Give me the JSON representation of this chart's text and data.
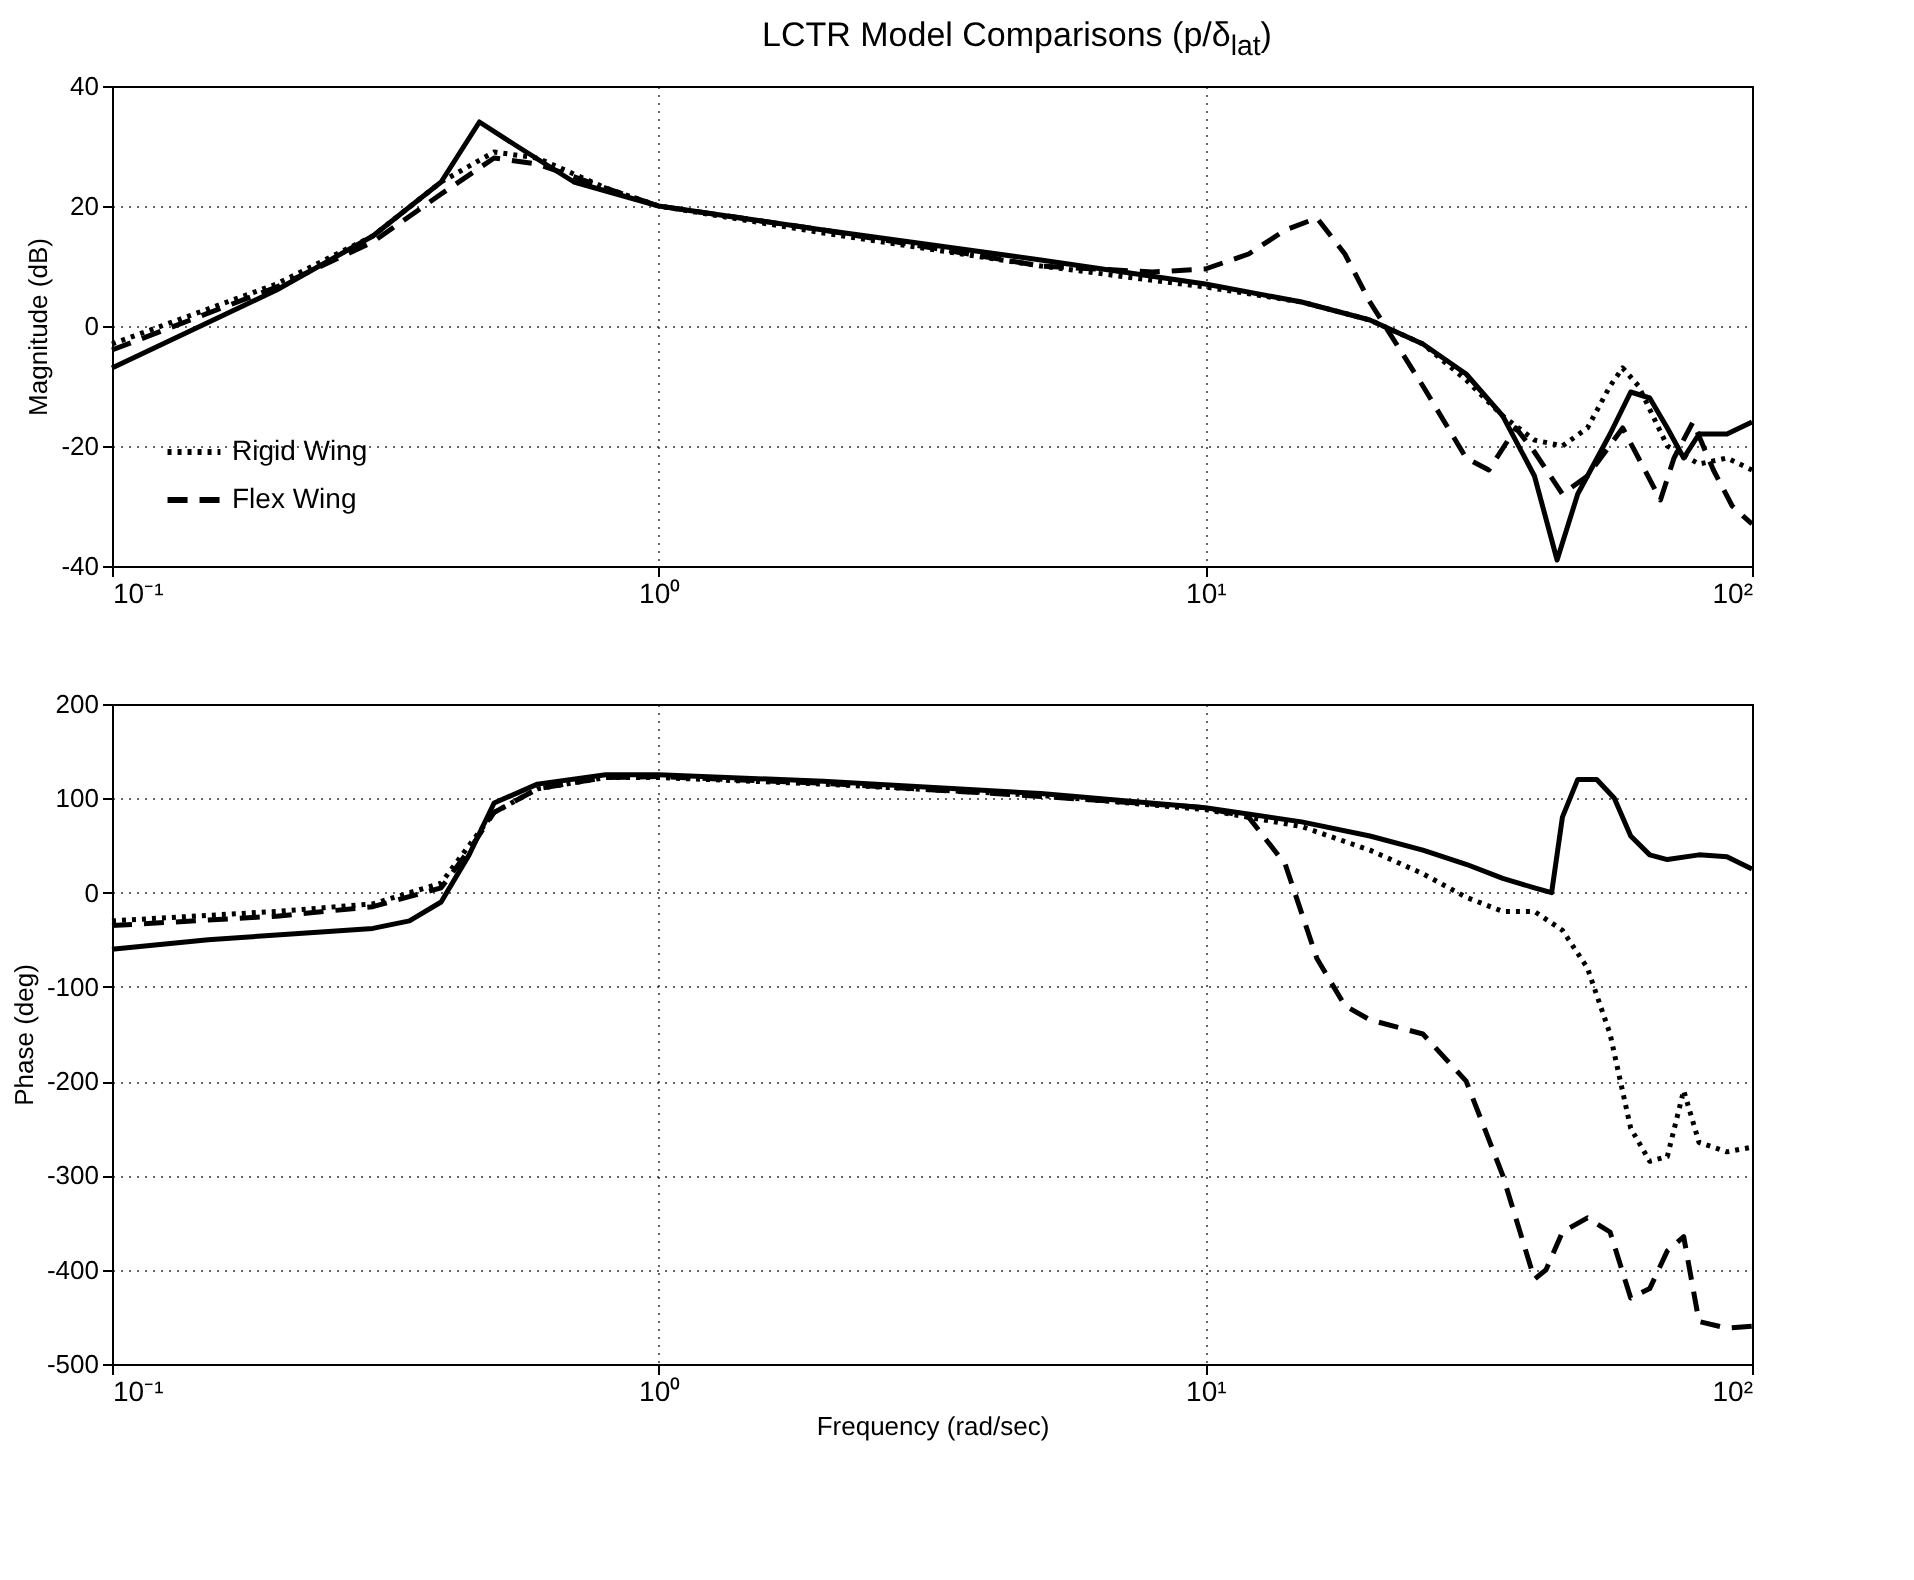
{
  "chart_data": [
    {
      "type": "line",
      "title": "LCTR Model Comparisons (p/δ$_{lat}$)",
      "ylabel": "Magnitude (dB)",
      "log": "x",
      "grid": true,
      "legend": "bottom left",
      "marker": "none",
      "xlim": [
        0.1,
        100
      ],
      "xticks": [
        {
          "value": 0.1,
          "label": "10⁻¹"
        },
        {
          "value": 1,
          "label": "10⁰"
        },
        {
          "value": 10,
          "label": "10¹"
        },
        {
          "value": 100,
          "label": "10²"
        }
      ],
      "ylim": [
        -40,
        40
      ],
      "yticks": [
        -40,
        -20,
        0,
        20,
        40
      ],
      "series": [
        {
          "name": "Rigid Wing",
          "color": "#000000",
          "line_style": "dotted",
          "x": [
            0.1,
            0.2,
            0.3,
            0.4,
            0.5,
            0.6,
            0.8,
            1,
            2,
            5,
            10,
            15,
            20,
            25,
            30,
            35,
            40,
            45,
            50,
            55,
            58,
            62,
            70,
            80,
            90,
            100
          ],
          "values": [
            -3,
            7,
            15,
            24,
            29,
            28,
            23,
            20,
            15.5,
            10,
            6.5,
            4,
            1,
            -3,
            -9,
            -15,
            -19,
            -20,
            -17,
            -10,
            -7,
            -10,
            -20,
            -23,
            -22,
            -24
          ]
        },
        {
          "name": "Flex Wing",
          "color": "#000000",
          "line_style": "dashed",
          "x": [
            0.1,
            0.2,
            0.3,
            0.4,
            0.5,
            0.6,
            0.8,
            1,
            2,
            5,
            8,
            10,
            12,
            14,
            16,
            18,
            20,
            25,
            30,
            33,
            37,
            40,
            45,
            50,
            58,
            62,
            68,
            72,
            78,
            85,
            92,
            100
          ],
          "values": [
            -4,
            6.5,
            14,
            22,
            28,
            27,
            23,
            20,
            16,
            10,
            9,
            9.5,
            12,
            16,
            18,
            12,
            4,
            -10,
            -22,
            -24,
            -17,
            -21,
            -28,
            -25,
            -17,
            -22,
            -29,
            -22,
            -16,
            -24,
            -30,
            -33
          ]
        },
        {
          "color": "#000000",
          "line_style": "solid",
          "x": [
            0.1,
            0.2,
            0.3,
            0.4,
            0.47,
            0.55,
            0.7,
            1,
            2,
            5,
            10,
            15,
            20,
            25,
            30,
            35,
            40,
            44,
            48,
            55,
            60,
            65,
            70,
            75,
            80,
            90,
            100
          ],
          "values": [
            -7,
            6,
            15,
            24,
            34,
            30,
            24,
            20,
            16,
            11,
            7,
            4,
            1,
            -3,
            -8,
            -15,
            -25,
            -39,
            -28,
            -18,
            -11,
            -12,
            -17,
            -22,
            -18,
            -18,
            -16
          ]
        }
      ]
    },
    {
      "type": "line",
      "xlabel": "Frequency (rad/sec)",
      "ylabel": "Phase (deg)",
      "log": "x",
      "grid": true,
      "marker": "none",
      "xlim": [
        0.1,
        100
      ],
      "xticks": [
        {
          "value": 0.1,
          "label": "10⁻¹"
        },
        {
          "value": 1,
          "label": "10⁰"
        },
        {
          "value": 10,
          "label": "10¹"
        },
        {
          "value": 100,
          "label": "10²"
        }
      ],
      "ylim": [
        -500,
        200
      ],
      "yticks": [
        -500,
        -400,
        -300,
        -200,
        -100,
        0,
        100,
        200
      ],
      "series": [
        {
          "color": "#000000",
          "line_style": "dotted",
          "x": [
            0.1,
            0.2,
            0.3,
            0.4,
            0.45,
            0.5,
            0.6,
            0.8,
            1,
            2,
            5,
            10,
            15,
            20,
            25,
            30,
            35,
            40,
            45,
            50,
            55,
            60,
            65,
            70,
            75,
            80,
            90,
            100
          ],
          "values": [
            -30,
            -20,
            -12,
            10,
            50,
            85,
            110,
            122,
            122,
            115,
            103,
            88,
            70,
            45,
            20,
            -5,
            -20,
            -20,
            -40,
            -80,
            -150,
            -250,
            -285,
            -280,
            -210,
            -265,
            -275,
            -270
          ]
        },
        {
          "color": "#000000",
          "line_style": "dashed",
          "x": [
            0.1,
            0.2,
            0.3,
            0.4,
            0.45,
            0.5,
            0.6,
            0.8,
            1,
            2,
            5,
            10,
            12,
            14,
            16,
            18,
            20,
            25,
            30,
            35,
            40,
            42,
            45,
            50,
            55,
            60,
            65,
            70,
            75,
            80,
            90,
            100
          ],
          "values": [
            -35,
            -25,
            -15,
            5,
            45,
            85,
            110,
            122,
            123,
            116,
            102,
            90,
            80,
            30,
            -70,
            -120,
            -135,
            -150,
            -200,
            -300,
            -410,
            -400,
            -360,
            -345,
            -360,
            -430,
            -420,
            -380,
            -365,
            -455,
            -462,
            -460
          ]
        },
        {
          "color": "#000000",
          "line_style": "solid",
          "x": [
            0.1,
            0.15,
            0.2,
            0.3,
            0.35,
            0.4,
            0.45,
            0.5,
            0.6,
            0.8,
            1,
            2,
            5,
            10,
            15,
            20,
            25,
            30,
            35,
            40,
            43,
            45,
            48,
            52,
            56,
            60,
            65,
            70,
            80,
            90,
            100
          ],
          "values": [
            -60,
            -50,
            -45,
            -38,
            -30,
            -10,
            40,
            95,
            115,
            125,
            125,
            118,
            105,
            90,
            75,
            60,
            45,
            30,
            15,
            5,
            0,
            80,
            120,
            120,
            100,
            60,
            40,
            35,
            40,
            38,
            25
          ]
        }
      ]
    }
  ]
}
